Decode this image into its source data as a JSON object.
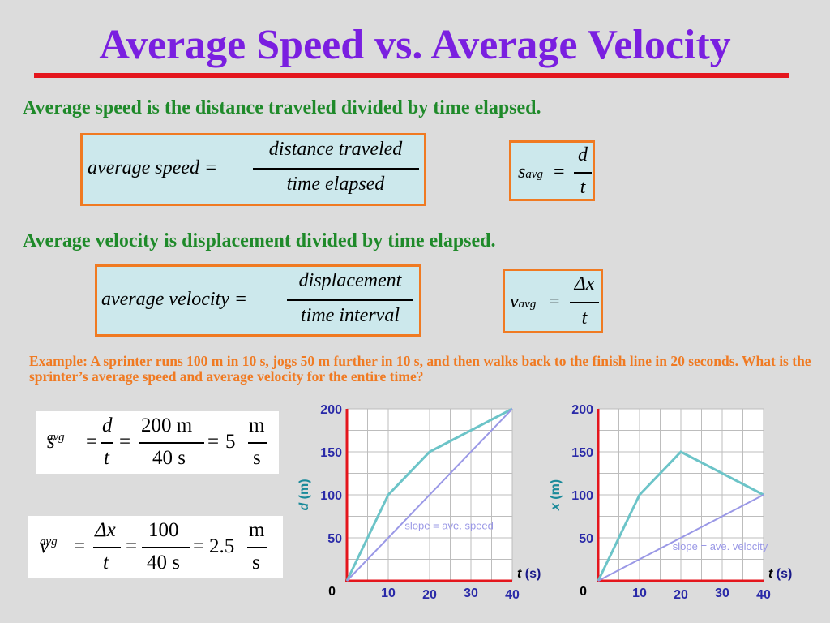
{
  "title": "Average Speed vs. Average Velocity",
  "speed_section": {
    "heading": "Average speed is the distance traveled divided by time elapsed.",
    "word_eq": {
      "lhs": "average speed =",
      "num": "distance traveled",
      "den": "time elapsed"
    },
    "sym_eq": {
      "lhs": "s",
      "sub": "avg",
      "eq": "=",
      "num": "d",
      "den": "t"
    }
  },
  "velocity_section": {
    "heading": "Average velocity is displacement divided by time elapsed.",
    "word_eq": {
      "lhs": "average velocity =",
      "num": "displacement",
      "den": "time interval"
    },
    "sym_eq": {
      "lhs": "v",
      "sub": "avg",
      "eq": "=",
      "num": "Δx",
      "den": "t"
    }
  },
  "example": "Example: A sprinter runs 100 m in 10 s, jogs 50 m further in 10 s, and then walks back to the finish line in 20 seconds. What is the sprinter’s average speed and average velocity for the entire time?",
  "speed_calc": {
    "lhs": "s",
    "sub": "avg",
    "eq1": "=",
    "f1_num": "d",
    "f1_den": "t",
    "eq2": "=",
    "f2_num": "200 m",
    "f2_den": "40 s",
    "eq3": "=",
    "result": "5",
    "unit_num": "m",
    "unit_den": "s"
  },
  "velocity_calc": {
    "lhs": "v",
    "sub": "avg",
    "eq1": "=",
    "f1_num": "Δx",
    "f1_den": "t",
    "eq2": "=",
    "f2_num": "100",
    "f2_den": "40 s",
    "eq3": "=",
    "result": "2.5",
    "unit_num": "m",
    "unit_den": "s"
  },
  "colors": {
    "title": "#7a1fe0",
    "rule": "#e4161d",
    "heading": "#1f8a2a",
    "orange": "#f07a22",
    "axis": "#e4161d",
    "path": "#6cc4c8",
    "slope": "#9a98e6",
    "tick": "#2a2aa8"
  },
  "chart_data": [
    {
      "type": "line",
      "xlabel_var": "t",
      "xlabel_unit": "(s)",
      "ylabel_var": "d",
      "ylabel_unit": "(m)",
      "xlim": [
        0,
        40
      ],
      "ylim": [
        0,
        200
      ],
      "x_ticks": [
        "10",
        "20",
        "30",
        "40"
      ],
      "y_ticks": [
        "50",
        "100",
        "150",
        "200"
      ],
      "origin_label": "0",
      "grid": true,
      "series": [
        {
          "name": "distance",
          "points": [
            [
              0,
              0
            ],
            [
              10,
              100
            ],
            [
              20,
              150
            ],
            [
              40,
              200
            ]
          ]
        },
        {
          "name": "slope",
          "points": [
            [
              0,
              0
            ],
            [
              40,
              200
            ]
          ]
        }
      ],
      "annotation": "slope = ave. speed"
    },
    {
      "type": "line",
      "xlabel_var": "t",
      "xlabel_unit": "(s)",
      "ylabel_var": "x",
      "ylabel_unit": "(m)",
      "xlim": [
        0,
        40
      ],
      "ylim": [
        0,
        200
      ],
      "x_ticks": [
        "10",
        "20",
        "30",
        "40"
      ],
      "y_ticks": [
        "50",
        "100",
        "150",
        "200"
      ],
      "origin_label": "0",
      "grid": true,
      "series": [
        {
          "name": "position",
          "points": [
            [
              0,
              0
            ],
            [
              10,
              100
            ],
            [
              20,
              150
            ],
            [
              40,
              100
            ]
          ]
        },
        {
          "name": "slope",
          "points": [
            [
              0,
              0
            ],
            [
              40,
              100
            ]
          ]
        }
      ],
      "annotation": "slope = ave. velocity"
    }
  ]
}
